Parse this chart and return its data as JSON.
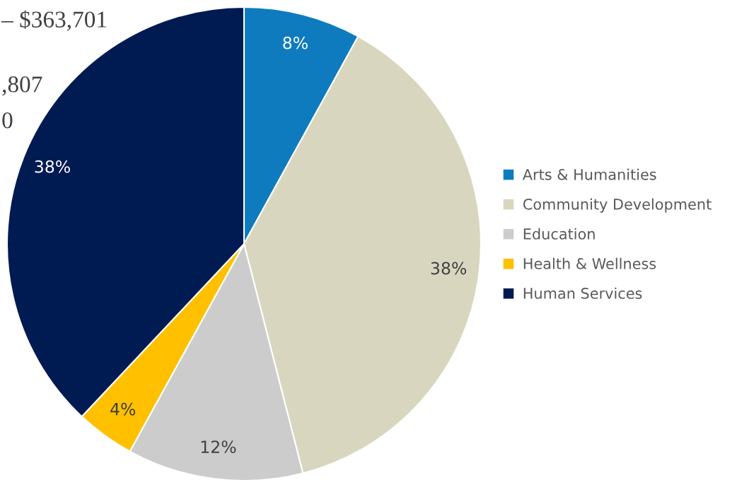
{
  "chart_data": {
    "type": "pie",
    "categories": [
      "Arts & Humanities",
      "Community Development",
      "Education",
      "Health & Wellness",
      "Human Services"
    ],
    "values": [
      8,
      38,
      12,
      4,
      38
    ],
    "colors": [
      "#0e7bbf",
      "#d9d6c0",
      "#cccccc",
      "#ffc000",
      "#001a52"
    ],
    "value_labels": [
      "8%",
      "38%",
      "12%",
      "4%",
      "38%"
    ],
    "legend": "right",
    "annotations": [
      "– $363,701",
      ",807",
      "0"
    ]
  }
}
